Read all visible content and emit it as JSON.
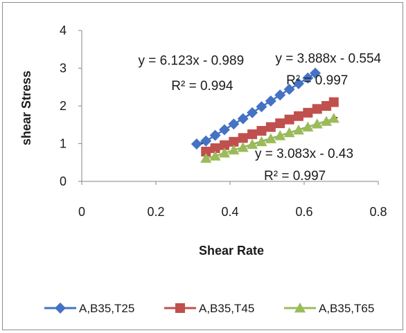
{
  "chart_data": {
    "type": "scatter",
    "xlabel": "Shear Rate",
    "ylabel": "shear Stress",
    "xlim": [
      0,
      0.8
    ],
    "ylim": [
      0,
      4
    ],
    "x_ticks": [
      "0",
      "0.2",
      "0.4",
      "0.6",
      "0.8"
    ],
    "y_ticks": [
      "0",
      "1",
      "2",
      "3",
      "4"
    ],
    "grid": false,
    "legend_position": "bottom",
    "series": [
      {
        "name": "A,B35,T25",
        "color": "#4472C4",
        "marker": "diamond",
        "x": [
          0.31,
          0.335,
          0.36,
          0.385,
          0.41,
          0.435,
          0.46,
          0.485,
          0.51,
          0.535,
          0.56,
          0.585,
          0.61,
          0.63
        ],
        "y": [
          0.99,
          1.07,
          1.22,
          1.37,
          1.52,
          1.66,
          1.82,
          1.98,
          2.13,
          2.29,
          2.44,
          2.59,
          2.74,
          2.87
        ],
        "trendline": {
          "slope": 6.123,
          "intercept": -0.989,
          "x": [
            0.31,
            0.635
          ]
        }
      },
      {
        "name": "A,B35,T45",
        "color": "#C0504D",
        "marker": "square",
        "x": [
          0.335,
          0.36,
          0.385,
          0.41,
          0.435,
          0.46,
          0.485,
          0.51,
          0.535,
          0.56,
          0.585,
          0.61,
          0.635,
          0.66,
          0.68
        ],
        "y": [
          0.79,
          0.88,
          0.96,
          1.05,
          1.15,
          1.25,
          1.34,
          1.44,
          1.54,
          1.64,
          1.73,
          1.82,
          1.92,
          2.0,
          2.1
        ],
        "trendline": {
          "slope": 3.888,
          "intercept": -0.554,
          "x": [
            0.335,
            0.685
          ]
        }
      },
      {
        "name": "A,B35,T65",
        "color": "#9BBB59",
        "marker": "triangle",
        "x": [
          0.335,
          0.36,
          0.385,
          0.41,
          0.435,
          0.46,
          0.485,
          0.51,
          0.535,
          0.56,
          0.585,
          0.61,
          0.635,
          0.66,
          0.68
        ],
        "y": [
          0.61,
          0.67,
          0.75,
          0.83,
          0.9,
          0.98,
          1.05,
          1.13,
          1.21,
          1.29,
          1.36,
          1.44,
          1.52,
          1.59,
          1.67
        ],
        "trendline": {
          "slope": 3.083,
          "intercept": -0.43,
          "x": [
            0.335,
            0.69
          ]
        }
      }
    ],
    "annotations": [
      {
        "text": "y = 6.123x - 0.989",
        "x": 0.295,
        "y": 3.09
      },
      {
        "text": "R² = 0.994",
        "x": 0.325,
        "y": 2.42
      },
      {
        "text": "y = 3.888x - 0.554",
        "x": 0.665,
        "y": 3.15
      },
      {
        "text": "R² = 0.997",
        "x": 0.635,
        "y": 2.57
      },
      {
        "text": "y = 3.083x - 0.43",
        "x": 0.6,
        "y": 0.62
      },
      {
        "text": "R² = 0.997",
        "x": 0.575,
        "y": 0.04
      }
    ]
  }
}
